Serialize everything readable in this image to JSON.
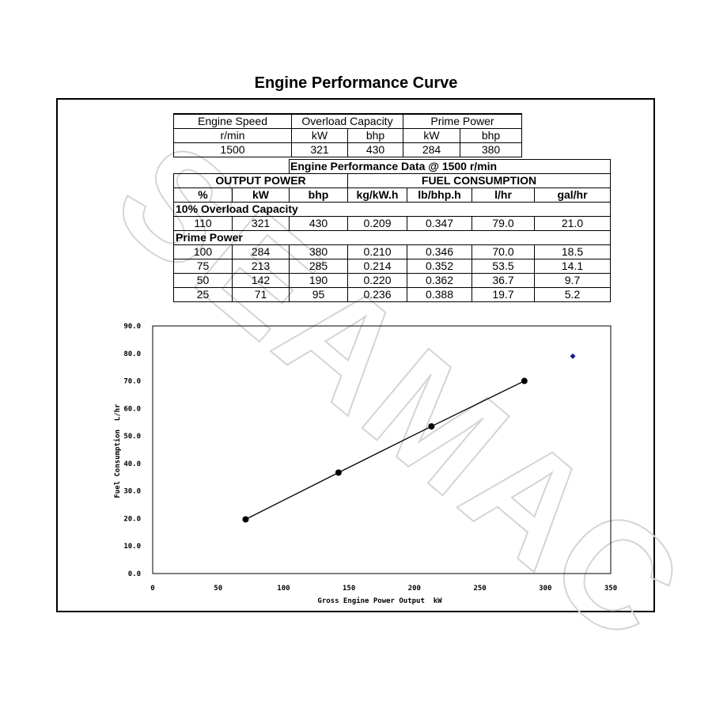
{
  "page": {
    "title": "Engine Performance Curve"
  },
  "spec_table": {
    "headers": [
      "Engine Speed",
      "Overload Capacity",
      "Prime Power"
    ],
    "units": [
      "r/min",
      "kW",
      "bhp",
      "kW",
      "bhp"
    ],
    "values": [
      "1500",
      "321",
      "430",
      "284",
      "380"
    ]
  },
  "perf_table": {
    "title": "Engine Performance Data @ 1500 r/min",
    "group_output": "OUTPUT POWER",
    "group_fuel": "FUEL CONSUMPTION",
    "columns": [
      "%",
      "kW",
      "bhp",
      "kg/kW.h",
      "lb/bhp.h",
      "l/hr",
      "gal/hr"
    ],
    "section_overload": "10% Overload Capacity",
    "overload_row": [
      "110",
      "321",
      "430",
      "0.209",
      "0.347",
      "79.0",
      "21.0"
    ],
    "section_prime": "Prime Power",
    "prime_rows": [
      [
        "100",
        "284",
        "380",
        "0.210",
        "0.346",
        "70.0",
        "18.5"
      ],
      [
        "75",
        "213",
        "285",
        "0.214",
        "0.352",
        "53.5",
        "14.1"
      ],
      [
        "50",
        "142",
        "190",
        "0.220",
        "0.362",
        "36.7",
        "9.7"
      ],
      [
        "25",
        "71",
        "95",
        "0.236",
        "0.388",
        "19.7",
        "5.2"
      ]
    ]
  },
  "chart_data": {
    "type": "scatter",
    "xlabel": "Gross Engine Power Output  kW",
    "ylabel": "Fuel Consumption  L/hr",
    "xlim": [
      0,
      350
    ],
    "ylim": [
      0,
      90
    ],
    "x_ticks": [
      "0",
      "50",
      "100",
      "150",
      "200",
      "250",
      "300",
      "350"
    ],
    "y_ticks": [
      "0.0",
      "10.0",
      "20.0",
      "30.0",
      "40.0",
      "50.0",
      "60.0",
      "70.0",
      "80.0",
      "90.0"
    ],
    "series": [
      {
        "points": [
          [
            71,
            19.7
          ],
          [
            142,
            36.7
          ],
          [
            213,
            53.5
          ],
          [
            284,
            70.0
          ]
        ],
        "color": "#000000",
        "line": true
      },
      {
        "points": [
          [
            321,
            79.0
          ]
        ],
        "color": "#1a1a8c",
        "marker": "diamond"
      }
    ],
    "grid": false
  },
  "watermark": {
    "text": "SEAMAC"
  }
}
